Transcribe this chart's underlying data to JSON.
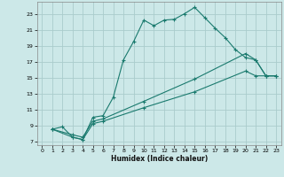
{
  "xlabel": "Humidex (Indice chaleur)",
  "background_color": "#cce8e8",
  "grid_color": "#aacccc",
  "line_color": "#1a7a6e",
  "xlim": [
    -0.5,
    23.5
  ],
  "ylim": [
    6.5,
    24.5
  ],
  "yticks": [
    7,
    9,
    11,
    13,
    15,
    17,
    19,
    21,
    23
  ],
  "xticks": [
    0,
    1,
    2,
    3,
    4,
    5,
    6,
    7,
    8,
    9,
    10,
    11,
    12,
    13,
    14,
    15,
    16,
    17,
    18,
    19,
    20,
    21,
    22,
    23
  ],
  "line1_x": [
    1,
    2,
    3,
    4,
    5,
    6,
    7,
    8,
    9,
    10,
    11,
    12,
    13,
    14,
    15,
    16,
    17,
    18,
    19,
    20,
    21,
    22,
    23
  ],
  "line1_y": [
    8.5,
    8.8,
    7.5,
    7.2,
    10.0,
    10.2,
    12.5,
    17.2,
    19.5,
    22.2,
    21.5,
    22.2,
    22.3,
    23.0,
    23.8,
    22.5,
    21.2,
    20.0,
    18.5,
    17.5,
    17.2,
    15.2,
    15.2
  ],
  "line2_x": [
    1,
    3,
    4,
    5,
    6,
    10,
    15,
    20,
    21,
    22,
    23
  ],
  "line2_y": [
    8.5,
    7.8,
    7.5,
    9.5,
    9.8,
    12.0,
    14.8,
    18.0,
    17.2,
    15.2,
    15.2
  ],
  "line3_x": [
    1,
    3,
    4,
    5,
    6,
    10,
    15,
    20,
    21,
    22,
    23
  ],
  "line3_y": [
    8.5,
    7.5,
    7.2,
    9.2,
    9.5,
    11.2,
    13.2,
    15.8,
    15.2,
    15.2,
    15.2
  ]
}
